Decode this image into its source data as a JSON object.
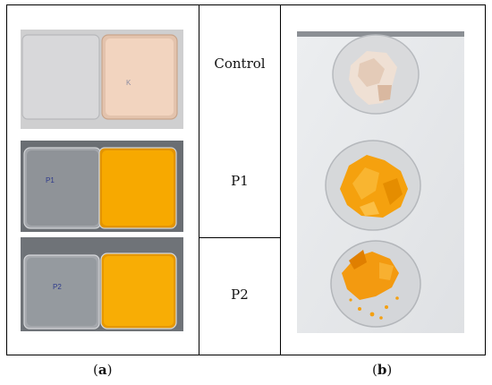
{
  "samples": {
    "control_label": "Control",
    "p1_label": "P1",
    "p2_label": "P2"
  },
  "dish_marks": {
    "control": "K",
    "p1": "P1",
    "p2": "P2"
  },
  "captions": {
    "a_open": "(",
    "a_letter": "a",
    "a_close": ")",
    "b_open": "(",
    "b_letter": "b",
    "b_close": ")"
  },
  "colors": {
    "control_film": "#f6d9c4",
    "pigment_film": "#f6a800",
    "dark_background": "#6a6e73",
    "paper_background": "#e9eaec"
  }
}
